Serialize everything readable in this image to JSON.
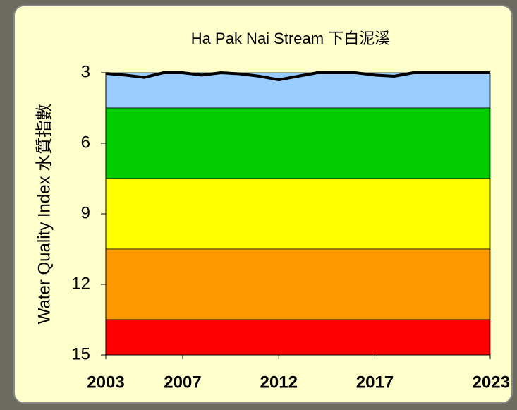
{
  "chart_data": {
    "type": "line",
    "title": "Ha Pak Nai Stream 下白泥溪",
    "y_label": "Water Quality Index  水質指數",
    "x": [
      2003,
      2004,
      2005,
      2006,
      2007,
      2008,
      2009,
      2010,
      2011,
      2012,
      2013,
      2014,
      2015,
      2016,
      2017,
      2018,
      2019,
      2020,
      2021,
      2022,
      2023
    ],
    "series": [
      {
        "color": "#000000",
        "values": [
          3.03,
          3.1,
          3.2,
          3,
          3,
          3.1,
          3,
          3.05,
          3.15,
          3.3,
          3.15,
          3,
          3,
          3,
          3.1,
          3.15,
          3,
          3,
          3,
          3,
          3
        ]
      }
    ],
    "xlim": [
      2003,
      2023
    ],
    "xticks": [
      2003,
      2007,
      2012,
      2017,
      2023
    ],
    "ylim": [
      3,
      15
    ],
    "yticks": [
      3,
      6,
      9,
      12,
      15
    ],
    "y_reversed": true,
    "bands": [
      {
        "from": 3,
        "to": 4.5,
        "color": "#99ccff"
      },
      {
        "from": 4.5,
        "to": 7.5,
        "color": "#00cc00"
      },
      {
        "from": 7.5,
        "to": 10.5,
        "color": "#ffff00"
      },
      {
        "from": 10.5,
        "to": 13.5,
        "color": "#ff9900"
      },
      {
        "from": 13.5,
        "to": 15,
        "color": "#ff0000"
      }
    ]
  }
}
